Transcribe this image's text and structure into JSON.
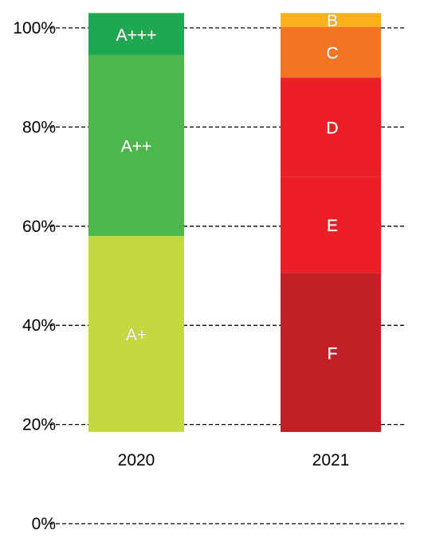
{
  "chart_data": {
    "type": "bar",
    "stacked": true,
    "ylim": [
      0,
      100
    ],
    "y_ticks": [
      {
        "value": 0,
        "label": "0%"
      },
      {
        "value": 20,
        "label": "20%"
      },
      {
        "value": 40,
        "label": "40%"
      },
      {
        "value": 60,
        "label": "60%"
      },
      {
        "value": 80,
        "label": "80%"
      },
      {
        "value": 100,
        "label": "100%"
      }
    ],
    "grid": "horizontal dashed",
    "bars": [
      {
        "category": "2020",
        "segments": [
          {
            "label": "A+",
            "from": 18.5,
            "to": 58,
            "color": "#c4d83f"
          },
          {
            "label": "A++",
            "from": 58,
            "to": 94.5,
            "color": "#4cb84b"
          },
          {
            "label": "A+++",
            "from": 94.5,
            "to": 103,
            "color": "#1ea84f"
          }
        ]
      },
      {
        "category": "2021",
        "segments": [
          {
            "label": "F",
            "from": 18.5,
            "to": 50.5,
            "color": "#c12027"
          },
          {
            "label": "E",
            "from": 50.5,
            "to": 70,
            "color": "#ed1f26"
          },
          {
            "label": "D",
            "from": 70,
            "to": 90,
            "color": "#ed1f26"
          },
          {
            "label": "C",
            "from": 90,
            "to": 100.2,
            "color": "#f47521"
          },
          {
            "label": "B",
            "from": 100.2,
            "to": 103,
            "color": "#fbb11a"
          }
        ]
      }
    ]
  }
}
